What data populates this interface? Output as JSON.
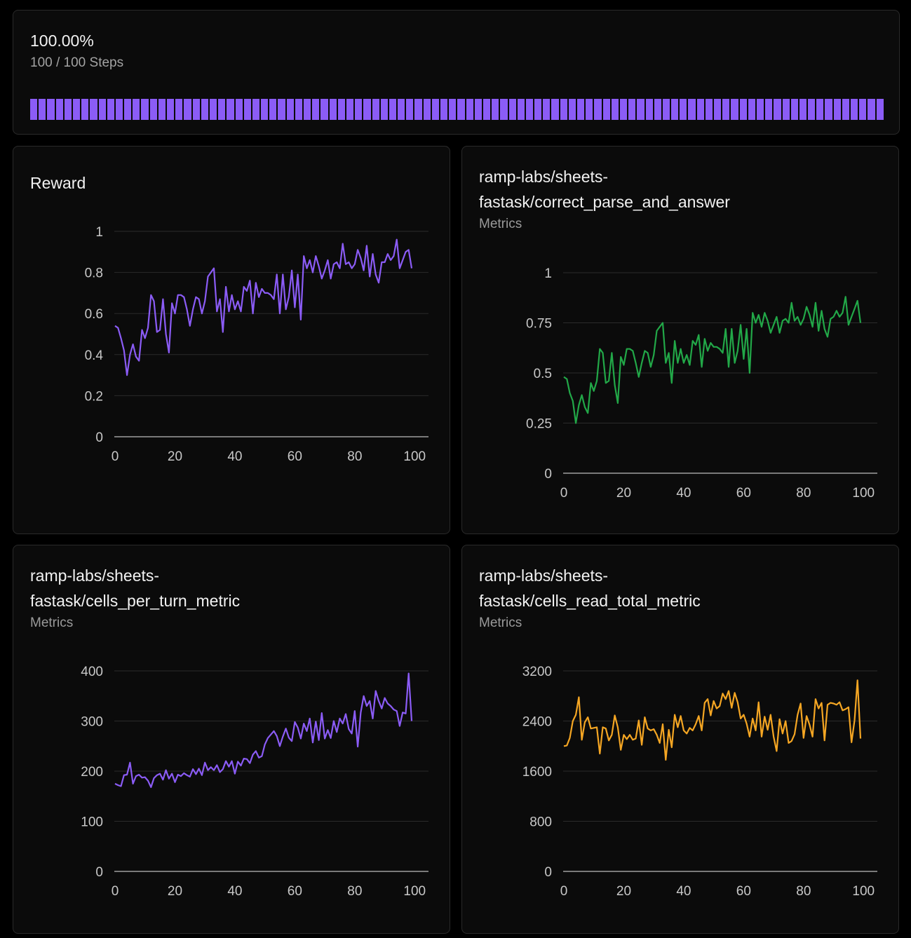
{
  "progress": {
    "percent_label": "100.00%",
    "steps_label": "100 / 100 Steps",
    "value": 1.0,
    "bar_color": "#8b5cf6"
  },
  "charts": [
    {
      "title_lines": [
        "Reward"
      ],
      "subtitle": "",
      "color": "#8b5cf6"
    },
    {
      "title_lines": [
        "ramp-labs/sheets-",
        "fastask/correct_parse_and_answer"
      ],
      "subtitle": "Metrics",
      "color": "#22a848"
    },
    {
      "title_lines": [
        "ramp-labs/sheets-",
        "fastask/cells_per_turn_metric"
      ],
      "subtitle": "Metrics",
      "color": "#8b5cf6"
    },
    {
      "title_lines": [
        "ramp-labs/sheets-",
        "fastask/cells_read_total_metric"
      ],
      "subtitle": "Metrics",
      "color": "#f5a623"
    }
  ],
  "chart_data": [
    {
      "type": "line",
      "title": "Reward",
      "xlim": [
        0,
        100
      ],
      "ylim": [
        0,
        1
      ],
      "xticks": [
        "0",
        "20",
        "40",
        "60",
        "80",
        "100"
      ],
      "yticks": [
        "0",
        "0.2",
        "0.4",
        "0.6",
        "0.8",
        "1"
      ],
      "grid": true,
      "series": [
        {
          "x": [
            0,
            1,
            2,
            3,
            4,
            5,
            6,
            7,
            8,
            9,
            10,
            11,
            12,
            13,
            14,
            15,
            16,
            17,
            18,
            19,
            20,
            21,
            22,
            23,
            24,
            25,
            26,
            27,
            28,
            29,
            30,
            31,
            32,
            33,
            34,
            35,
            36,
            37,
            38,
            39,
            40,
            41,
            42,
            43,
            44,
            45,
            46,
            47,
            48,
            49,
            50,
            51,
            52,
            53,
            54,
            55,
            56,
            57,
            58,
            59,
            60,
            61,
            62,
            63,
            64,
            65,
            66,
            67,
            68,
            69,
            70,
            71,
            72,
            73,
            74,
            75,
            76,
            77,
            78,
            79,
            80,
            81,
            82,
            83,
            84,
            85,
            86,
            87,
            88,
            89,
            90,
            91,
            92,
            93,
            94,
            95,
            96,
            97,
            98,
            99
          ],
          "values": [
            0.54,
            0.53,
            0.48,
            0.42,
            0.3,
            0.4,
            0.45,
            0.39,
            0.37,
            0.52,
            0.48,
            0.53,
            0.69,
            0.66,
            0.51,
            0.52,
            0.67,
            0.5,
            0.41,
            0.65,
            0.6,
            0.69,
            0.69,
            0.68,
            0.62,
            0.54,
            0.62,
            0.68,
            0.67,
            0.6,
            0.66,
            0.78,
            0.8,
            0.82,
            0.61,
            0.67,
            0.51,
            0.73,
            0.61,
            0.69,
            0.62,
            0.66,
            0.61,
            0.73,
            0.71,
            0.76,
            0.6,
            0.75,
            0.68,
            0.72,
            0.7,
            0.7,
            0.69,
            0.67,
            0.79,
            0.6,
            0.79,
            0.62,
            0.68,
            0.81,
            0.63,
            0.79,
            0.57,
            0.88,
            0.82,
            0.86,
            0.8,
            0.88,
            0.83,
            0.77,
            0.81,
            0.86,
            0.77,
            0.84,
            0.85,
            0.82,
            0.94,
            0.84,
            0.85,
            0.82,
            0.84,
            0.91,
            0.87,
            0.81,
            0.93,
            0.78,
            0.89,
            0.79,
            0.75,
            0.85,
            0.85,
            0.89,
            0.86,
            0.88,
            0.96,
            0.82,
            0.86,
            0.9,
            0.91,
            0.82
          ]
        }
      ]
    },
    {
      "type": "line",
      "title": "ramp-labs/sheets-fastask/correct_parse_and_answer",
      "subtitle": "Metrics",
      "xlim": [
        0,
        100
      ],
      "ylim": [
        0,
        1
      ],
      "xticks": [
        "0",
        "20",
        "40",
        "60",
        "80",
        "100"
      ],
      "yticks": [
        "0",
        "0.25",
        "0.5",
        "0.75",
        "1"
      ],
      "grid": true,
      "series": [
        {
          "x": [
            0,
            1,
            2,
            3,
            4,
            5,
            6,
            7,
            8,
            9,
            10,
            11,
            12,
            13,
            14,
            15,
            16,
            17,
            18,
            19,
            20,
            21,
            22,
            23,
            24,
            25,
            26,
            27,
            28,
            29,
            30,
            31,
            32,
            33,
            34,
            35,
            36,
            37,
            38,
            39,
            40,
            41,
            42,
            43,
            44,
            45,
            46,
            47,
            48,
            49,
            50,
            51,
            52,
            53,
            54,
            55,
            56,
            57,
            58,
            59,
            60,
            61,
            62,
            63,
            64,
            65,
            66,
            67,
            68,
            69,
            70,
            71,
            72,
            73,
            74,
            75,
            76,
            77,
            78,
            79,
            80,
            81,
            82,
            83,
            84,
            85,
            86,
            87,
            88,
            89,
            90,
            91,
            92,
            93,
            94,
            95,
            96,
            97,
            98,
            99
          ],
          "values": [
            0.48,
            0.47,
            0.4,
            0.36,
            0.25,
            0.34,
            0.39,
            0.33,
            0.3,
            0.45,
            0.41,
            0.46,
            0.62,
            0.6,
            0.45,
            0.46,
            0.6,
            0.44,
            0.35,
            0.58,
            0.54,
            0.62,
            0.62,
            0.61,
            0.55,
            0.48,
            0.55,
            0.61,
            0.6,
            0.53,
            0.59,
            0.71,
            0.73,
            0.75,
            0.55,
            0.6,
            0.45,
            0.66,
            0.55,
            0.62,
            0.55,
            0.59,
            0.54,
            0.66,
            0.64,
            0.69,
            0.53,
            0.67,
            0.61,
            0.65,
            0.63,
            0.63,
            0.62,
            0.6,
            0.72,
            0.53,
            0.72,
            0.55,
            0.61,
            0.74,
            0.57,
            0.72,
            0.5,
            0.8,
            0.75,
            0.79,
            0.73,
            0.8,
            0.76,
            0.7,
            0.74,
            0.78,
            0.7,
            0.76,
            0.77,
            0.75,
            0.85,
            0.76,
            0.78,
            0.74,
            0.77,
            0.83,
            0.79,
            0.73,
            0.85,
            0.71,
            0.81,
            0.72,
            0.68,
            0.77,
            0.78,
            0.81,
            0.78,
            0.8,
            0.88,
            0.74,
            0.78,
            0.82,
            0.86,
            0.75
          ]
        }
      ]
    },
    {
      "type": "line",
      "title": "ramp-labs/sheets-fastask/cells_per_turn_metric",
      "subtitle": "Metrics",
      "xlim": [
        0,
        100
      ],
      "ylim": [
        0,
        400
      ],
      "xticks": [
        "0",
        "20",
        "40",
        "60",
        "80",
        "100"
      ],
      "yticks": [
        "0",
        "100",
        "200",
        "300",
        "400"
      ],
      "grid": true,
      "series": [
        {
          "x": [
            0,
            1,
            2,
            3,
            4,
            5,
            6,
            7,
            8,
            9,
            10,
            11,
            12,
            13,
            14,
            15,
            16,
            17,
            18,
            19,
            20,
            21,
            22,
            23,
            24,
            25,
            26,
            27,
            28,
            29,
            30,
            31,
            32,
            33,
            34,
            35,
            36,
            37,
            38,
            39,
            40,
            41,
            42,
            43,
            44,
            45,
            46,
            47,
            48,
            49,
            50,
            51,
            52,
            53,
            54,
            55,
            56,
            57,
            58,
            59,
            60,
            61,
            62,
            63,
            64,
            65,
            66,
            67,
            68,
            69,
            70,
            71,
            72,
            73,
            74,
            75,
            76,
            77,
            78,
            79,
            80,
            81,
            82,
            83,
            84,
            85,
            86,
            87,
            88,
            89,
            90,
            91,
            92,
            93,
            94,
            95,
            96,
            97,
            98,
            99
          ],
          "values": [
            175,
            172,
            170,
            192,
            193,
            217,
            175,
            190,
            193,
            187,
            188,
            181,
            168,
            186,
            192,
            195,
            183,
            202,
            185,
            195,
            178,
            193,
            190,
            196,
            192,
            189,
            204,
            194,
            205,
            192,
            217,
            202,
            208,
            202,
            212,
            198,
            204,
            220,
            209,
            220,
            195,
            219,
            211,
            225,
            224,
            216,
            233,
            240,
            227,
            230,
            253,
            266,
            273,
            280,
            270,
            250,
            269,
            285,
            267,
            260,
            298,
            287,
            265,
            295,
            280,
            305,
            257,
            299,
            262,
            316,
            265,
            282,
            266,
            300,
            278,
            305,
            295,
            314,
            284,
            275,
            320,
            249,
            317,
            350,
            330,
            340,
            305,
            360,
            340,
            325,
            346,
            335,
            330,
            323,
            320,
            290,
            317,
            315,
            395,
            300
          ]
        }
      ]
    },
    {
      "type": "line",
      "title": "ramp-labs/sheets-fastask/cells_read_total_metric",
      "subtitle": "Metrics",
      "xlim": [
        0,
        100
      ],
      "ylim": [
        0,
        3200
      ],
      "xticks": [
        "0",
        "20",
        "40",
        "60",
        "80",
        "100"
      ],
      "yticks": [
        "0",
        "800",
        "1600",
        "2400",
        "3200"
      ],
      "grid": true,
      "series": [
        {
          "x": [
            0,
            1,
            2,
            3,
            4,
            5,
            6,
            7,
            8,
            9,
            10,
            11,
            12,
            13,
            14,
            15,
            16,
            17,
            18,
            19,
            20,
            21,
            22,
            23,
            24,
            25,
            26,
            27,
            28,
            29,
            30,
            31,
            32,
            33,
            34,
            35,
            36,
            37,
            38,
            39,
            40,
            41,
            42,
            43,
            44,
            45,
            46,
            47,
            48,
            49,
            50,
            51,
            52,
            53,
            54,
            55,
            56,
            57,
            58,
            59,
            60,
            61,
            62,
            63,
            64,
            65,
            66,
            67,
            68,
            69,
            70,
            71,
            72,
            73,
            74,
            75,
            76,
            77,
            78,
            79,
            80,
            81,
            82,
            83,
            84,
            85,
            86,
            87,
            88,
            89,
            90,
            91,
            92,
            93,
            94,
            95,
            96,
            97,
            98,
            99
          ],
          "values": [
            2000,
            2010,
            2130,
            2400,
            2500,
            2780,
            2100,
            2380,
            2460,
            2280,
            2290,
            2300,
            1880,
            2300,
            2280,
            2090,
            2180,
            2490,
            2300,
            1940,
            2180,
            2110,
            2180,
            2100,
            2120,
            2410,
            2020,
            2460,
            2280,
            2250,
            2270,
            2180,
            2050,
            2350,
            1780,
            2260,
            1980,
            2500,
            2300,
            2480,
            2250,
            2200,
            2290,
            2250,
            2350,
            2480,
            2250,
            2690,
            2750,
            2490,
            2720,
            2600,
            2640,
            2840,
            2750,
            2880,
            2610,
            2850,
            2700,
            2440,
            2500,
            2360,
            2150,
            2440,
            2250,
            2700,
            2150,
            2470,
            2260,
            2500,
            2150,
            1920,
            2430,
            2200,
            2400,
            2050,
            2080,
            2190,
            2500,
            2680,
            2130,
            2480,
            2340,
            2150,
            2750,
            2600,
            2690,
            2090,
            2660,
            2690,
            2680,
            2660,
            2700,
            2570,
            2590,
            2620,
            2060,
            2410,
            3050,
            2120
          ]
        }
      ]
    }
  ]
}
